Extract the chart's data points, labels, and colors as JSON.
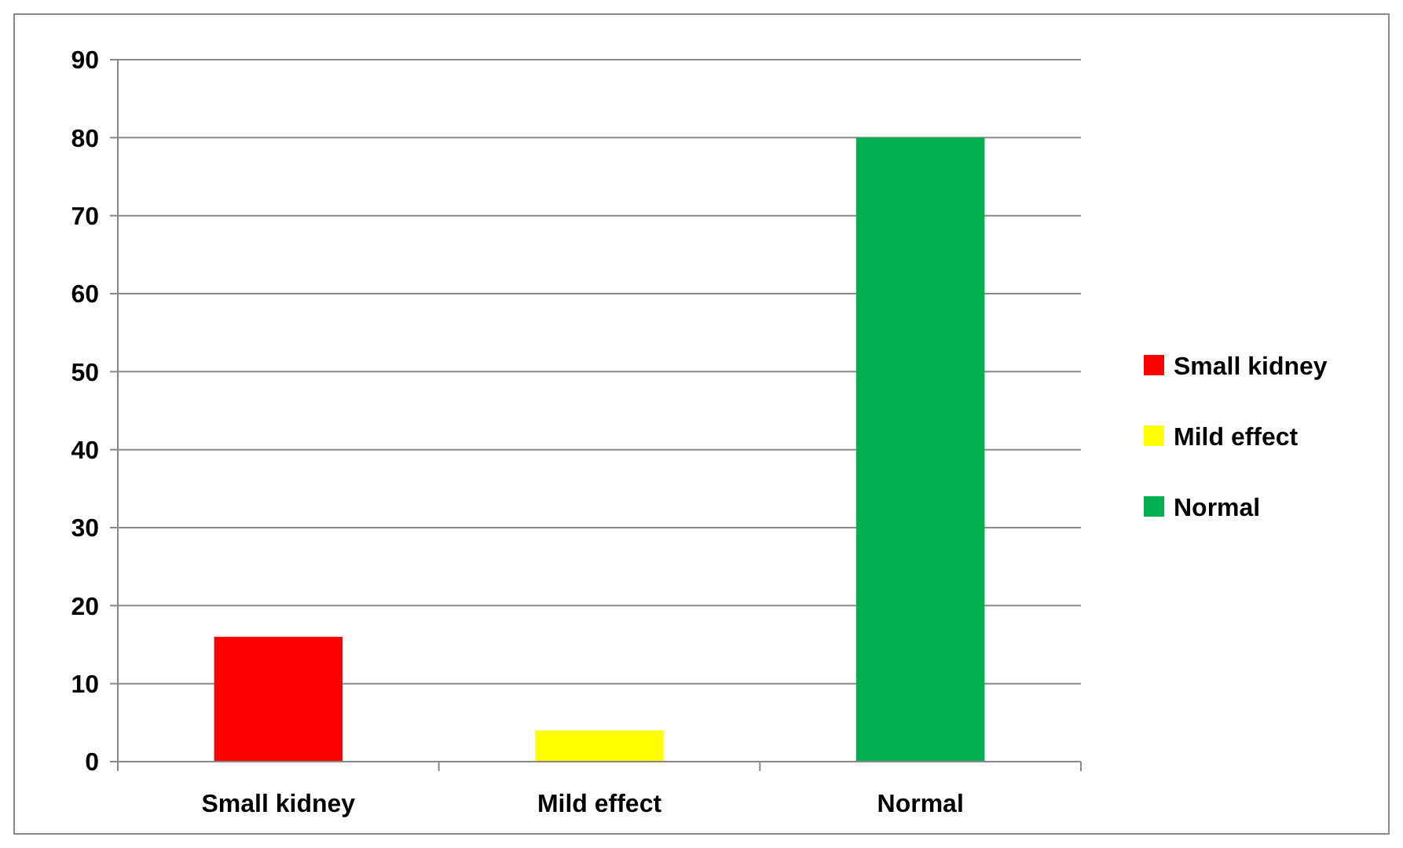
{
  "chart_data": {
    "type": "bar",
    "categories": [
      "Small kidney",
      "Mild effect",
      "Normal"
    ],
    "series": [
      {
        "name": "Small kidney",
        "color": "#ff0000",
        "values": [
          16,
          null,
          null
        ]
      },
      {
        "name": "Mild effect",
        "color": "#ffff00",
        "values": [
          null,
          4,
          null
        ]
      },
      {
        "name": "Normal",
        "color": "#00b050",
        "values": [
          null,
          null,
          80
        ]
      }
    ],
    "ylim": [
      0,
      90
    ],
    "yticks": [
      0,
      10,
      20,
      30,
      40,
      50,
      60,
      70,
      80,
      90
    ],
    "grid": "y",
    "legend": "right"
  }
}
